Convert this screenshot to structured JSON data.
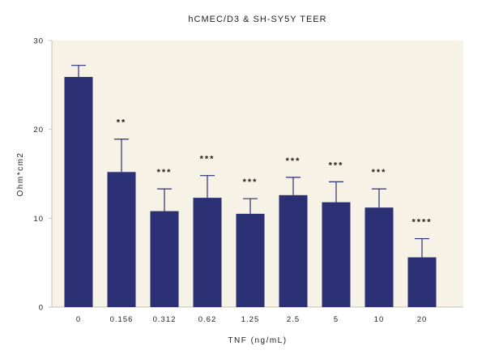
{
  "chart_data": {
    "type": "bar",
    "title": "hCMEC/D3 & SH-SY5Y TEER",
    "xlabel": "TNF (ng/mL)",
    "ylabel": "Ohm*cm2",
    "ylim": [
      0,
      30
    ],
    "yticks": [
      0,
      10,
      20,
      30
    ],
    "categories": [
      "0",
      "0.156",
      "0.312",
      "0.62",
      "1.25",
      "2.5",
      "5",
      "10",
      "20"
    ],
    "values": [
      25.9,
      15.2,
      10.8,
      12.3,
      10.5,
      12.6,
      11.8,
      11.2,
      5.6
    ],
    "error_upper": [
      1.3,
      3.7,
      2.5,
      2.5,
      1.7,
      2.0,
      2.3,
      2.1,
      2.1
    ],
    "significance": [
      "",
      "**",
      "***",
      "***",
      "***",
      "***",
      "***",
      "***",
      "****"
    ],
    "grid": false,
    "colors": {
      "bar": "#2b2f73",
      "plot_background": "#f6f2e6",
      "axis": "#c9c3b4"
    }
  }
}
